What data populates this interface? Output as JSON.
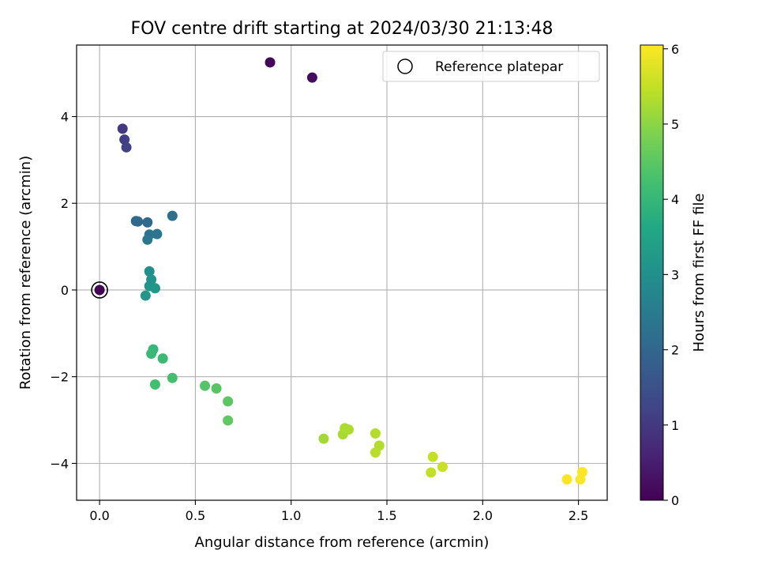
{
  "chart_data": {
    "type": "scatter",
    "title": "FOV centre drift starting at 2024/03/30 21:13:48",
    "xlabel": "Angular distance from reference (arcmin)",
    "ylabel": "Rotation from reference (arcmin)",
    "xlim": [
      -0.12,
      2.65
    ],
    "ylim": [
      -4.85,
      5.65
    ],
    "xticks": [
      0.0,
      0.5,
      1.0,
      1.5,
      2.0,
      2.5
    ],
    "xtick_labels": [
      "0.0",
      "0.5",
      "1.0",
      "1.5",
      "2.0",
      "2.5"
    ],
    "yticks": [
      -4,
      -2,
      0,
      2,
      4
    ],
    "ytick_labels": [
      "−4",
      "−2",
      "0",
      "2",
      "4"
    ],
    "grid": true,
    "legend": {
      "position": "top-right",
      "entries": [
        "Reference platepar"
      ]
    },
    "reference_point": {
      "x": 0.0,
      "y": 0.0
    },
    "colorbar": {
      "label": "Hours from first FF file",
      "colormap": "viridis",
      "range": [
        0,
        6.05
      ],
      "ticks": [
        0,
        1,
        2,
        3,
        4,
        5,
        6
      ],
      "tick_labels": [
        "0",
        "1",
        "2",
        "3",
        "4",
        "5",
        "6"
      ]
    },
    "points": [
      {
        "x": 0.0,
        "y": 0.0,
        "c": 0.0
      },
      {
        "x": 0.89,
        "y": 5.25,
        "c": 0.1
      },
      {
        "x": 1.11,
        "y": 4.9,
        "c": 0.2
      },
      {
        "x": 0.12,
        "y": 3.72,
        "c": 1.0
      },
      {
        "x": 0.13,
        "y": 3.47,
        "c": 1.1
      },
      {
        "x": 0.14,
        "y": 3.29,
        "c": 1.2
      },
      {
        "x": 0.19,
        "y": 1.59,
        "c": 2.0
      },
      {
        "x": 0.2,
        "y": 1.58,
        "c": 2.05
      },
      {
        "x": 0.25,
        "y": 1.56,
        "c": 2.1
      },
      {
        "x": 0.38,
        "y": 1.71,
        "c": 2.2
      },
      {
        "x": 0.26,
        "y": 1.28,
        "c": 2.3
      },
      {
        "x": 0.3,
        "y": 1.29,
        "c": 2.35
      },
      {
        "x": 0.25,
        "y": 1.16,
        "c": 2.4
      },
      {
        "x": 0.26,
        "y": 0.43,
        "c": 3.0
      },
      {
        "x": 0.27,
        "y": 0.24,
        "c": 3.05
      },
      {
        "x": 0.26,
        "y": 0.09,
        "c": 3.1
      },
      {
        "x": 0.29,
        "y": 0.04,
        "c": 3.15
      },
      {
        "x": 0.24,
        "y": -0.13,
        "c": 3.2
      },
      {
        "x": 0.28,
        "y": -1.37,
        "c": 4.0
      },
      {
        "x": 0.27,
        "y": -1.47,
        "c": 4.05
      },
      {
        "x": 0.33,
        "y": -1.58,
        "c": 4.1
      },
      {
        "x": 0.29,
        "y": -2.18,
        "c": 4.2
      },
      {
        "x": 0.38,
        "y": -2.03,
        "c": 4.25
      },
      {
        "x": 0.55,
        "y": -2.21,
        "c": 4.4
      },
      {
        "x": 0.61,
        "y": -2.27,
        "c": 4.45
      },
      {
        "x": 0.67,
        "y": -2.57,
        "c": 4.5
      },
      {
        "x": 0.67,
        "y": -3.01,
        "c": 4.55
      },
      {
        "x": 1.17,
        "y": -3.43,
        "c": 5.2
      },
      {
        "x": 1.27,
        "y": -3.33,
        "c": 5.25
      },
      {
        "x": 1.28,
        "y": -3.19,
        "c": 5.3
      },
      {
        "x": 1.3,
        "y": -3.22,
        "c": 5.3
      },
      {
        "x": 1.44,
        "y": -3.31,
        "c": 5.35
      },
      {
        "x": 1.46,
        "y": -3.59,
        "c": 5.35
      },
      {
        "x": 1.44,
        "y": -3.75,
        "c": 5.4
      },
      {
        "x": 1.74,
        "y": -3.85,
        "c": 5.5
      },
      {
        "x": 1.79,
        "y": -4.08,
        "c": 5.55
      },
      {
        "x": 1.73,
        "y": -4.21,
        "c": 5.5
      },
      {
        "x": 2.44,
        "y": -4.37,
        "c": 6.0
      },
      {
        "x": 2.51,
        "y": -4.37,
        "c": 6.02
      },
      {
        "x": 2.52,
        "y": -4.2,
        "c": 6.05
      }
    ]
  }
}
